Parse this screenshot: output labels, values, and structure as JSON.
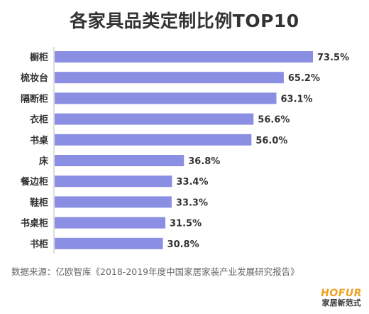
{
  "chart_data": {
    "type": "bar",
    "orientation": "horizontal",
    "title": "各家具品类定制比例TOP10",
    "categories": [
      "橱柜",
      "梳妆台",
      "隔断柜",
      "衣柜",
      "书桌",
      "床",
      "餐边柜",
      "鞋柜",
      "书桌柜",
      "书柜"
    ],
    "values": [
      73.5,
      65.2,
      63.1,
      56.6,
      56.0,
      36.8,
      33.4,
      33.3,
      31.5,
      30.8
    ],
    "value_labels": [
      "73.5%",
      "65.2%",
      "63.1%",
      "56.6%",
      "56.0%",
      "36.8%",
      "33.4%",
      "33.3%",
      "31.5%",
      "30.8%"
    ],
    "xlim": [
      0,
      73.5
    ],
    "grid": false,
    "bar_color": "#8b8fe3"
  },
  "source": "数据来源：亿欧智库《2018-2019年度中国家居家装产业发展研究报告》",
  "logo": {
    "brand": "HOFUR",
    "subtitle": "家居新范式"
  }
}
